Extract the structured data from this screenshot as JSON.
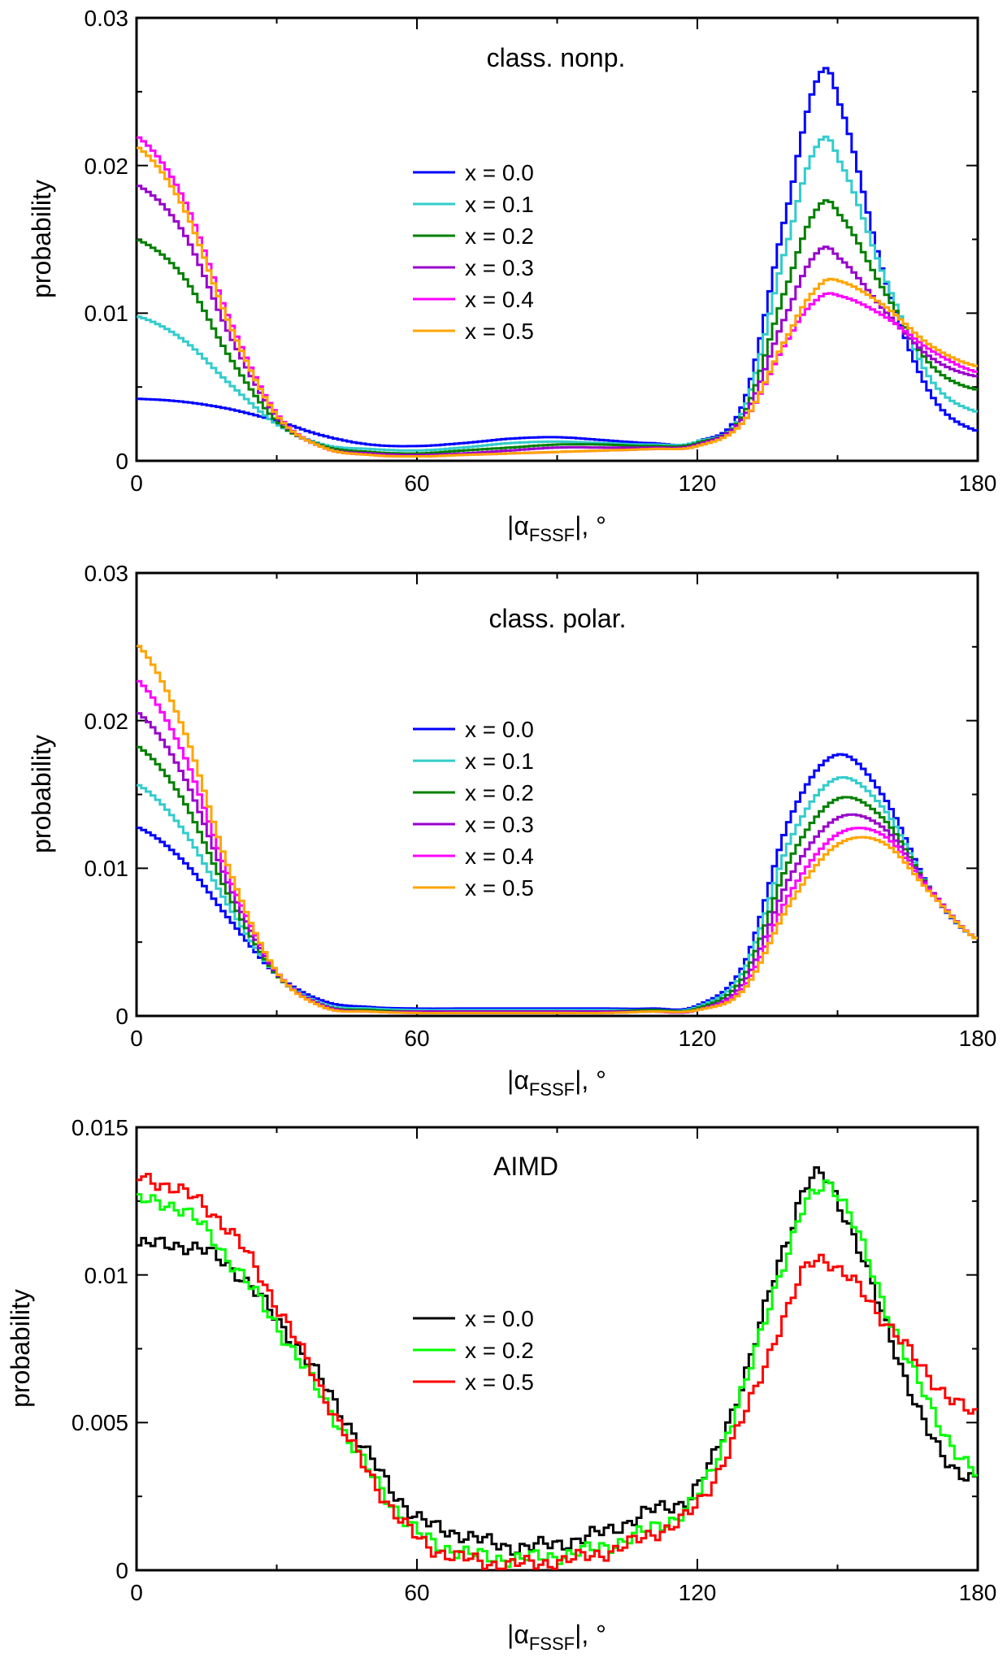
{
  "chart_data": [
    {
      "type": "line",
      "title": "class. nonp.",
      "xlabel": "|α_FSSF|, °",
      "xlabel_main": "|α",
      "xlabel_sub": "FSSF",
      "xlabel_tail": "|, °",
      "ylabel": "probability",
      "xlim": [
        0,
        180
      ],
      "ylim": [
        0,
        0.03
      ],
      "xticks": [
        "0",
        "60",
        "120",
        "180"
      ],
      "yticks": [
        "0",
        "0.01",
        "0.02",
        "0.03"
      ],
      "legend": "center-left",
      "x": [
        0,
        10,
        20,
        30,
        40,
        50,
        60,
        70,
        80,
        90,
        100,
        110,
        120,
        130,
        140,
        146,
        150,
        160,
        170,
        180
      ],
      "series": [
        {
          "name": "x = 0.0",
          "color": "#0000ff",
          "values": [
            0.0042,
            0.004,
            0.0035,
            0.0027,
            0.0017,
            0.0011,
            0.001,
            0.0012,
            0.0015,
            0.0016,
            0.0014,
            0.0012,
            0.0013,
            0.004,
            0.018,
            0.026,
            0.0245,
            0.0125,
            0.0045,
            0.002
          ]
        },
        {
          "name": "x = 0.1",
          "color": "#33cccc",
          "values": [
            0.0098,
            0.0082,
            0.0052,
            0.0025,
            0.0011,
            0.0008,
            0.0007,
            0.0009,
            0.0012,
            0.0013,
            0.0012,
            0.0011,
            0.0013,
            0.0035,
            0.0155,
            0.0215,
            0.0205,
            0.0125,
            0.0055,
            0.0033
          ]
        },
        {
          "name": "x = 0.2",
          "color": "#008000",
          "values": [
            0.015,
            0.0125,
            0.007,
            0.0027,
            0.001,
            0.0006,
            0.0005,
            0.0007,
            0.0009,
            0.0011,
            0.0011,
            0.001,
            0.0012,
            0.0032,
            0.0125,
            0.0172,
            0.0168,
            0.0115,
            0.0065,
            0.0048
          ]
        },
        {
          "name": "x = 0.3",
          "color": "#9900cc",
          "values": [
            0.0187,
            0.0155,
            0.0085,
            0.003,
            0.0009,
            0.0005,
            0.0004,
            0.0005,
            0.0007,
            0.0009,
            0.0009,
            0.0009,
            0.0011,
            0.003,
            0.0105,
            0.0142,
            0.0138,
            0.0102,
            0.007,
            0.0057
          ]
        },
        {
          "name": "x = 0.4",
          "color": "#ff00ff",
          "values": [
            0.022,
            0.0178,
            0.0095,
            0.0032,
            0.0009,
            0.0004,
            0.0003,
            0.0004,
            0.0005,
            0.0006,
            0.0007,
            0.0008,
            0.001,
            0.0027,
            0.0085,
            0.011,
            0.0112,
            0.0098,
            0.0075,
            0.006
          ]
        },
        {
          "name": "x = 0.5",
          "color": "#ffa500",
          "values": [
            0.0213,
            0.0172,
            0.0092,
            0.0031,
            0.0009,
            0.0004,
            0.0003,
            0.0004,
            0.0005,
            0.0006,
            0.0007,
            0.0008,
            0.001,
            0.0027,
            0.0088,
            0.0118,
            0.0122,
            0.0105,
            0.0078,
            0.0064
          ]
        }
      ]
    },
    {
      "type": "line",
      "title": "class. polar.",
      "xlabel": "|α_FSSF|, °",
      "xlabel_main": "|α",
      "xlabel_sub": "FSSF",
      "xlabel_tail": "|, °",
      "ylabel": "probability",
      "xlim": [
        0,
        180
      ],
      "ylim": [
        0,
        0.03
      ],
      "xticks": [
        "0",
        "60",
        "120",
        "180"
      ],
      "yticks": [
        "0",
        "0.01",
        "0.02",
        "0.03"
      ],
      "legend": "center",
      "x": [
        0,
        10,
        20,
        30,
        40,
        50,
        60,
        70,
        80,
        90,
        100,
        110,
        120,
        130,
        140,
        150,
        160,
        170,
        180
      ],
      "series": [
        {
          "name": "x = 0.0",
          "color": "#0000ff",
          "values": [
            0.0128,
            0.0105,
            0.0065,
            0.0028,
            0.001,
            0.0006,
            0.0005,
            0.0005,
            0.0005,
            0.0005,
            0.0005,
            0.0005,
            0.0007,
            0.0035,
            0.0135,
            0.0177,
            0.0148,
            0.0085,
            0.0052
          ]
        },
        {
          "name": "x = 0.1",
          "color": "#33cccc",
          "values": [
            0.0157,
            0.0126,
            0.0073,
            0.0028,
            0.0008,
            0.0005,
            0.0004,
            0.0004,
            0.0004,
            0.0004,
            0.0004,
            0.0004,
            0.0006,
            0.0031,
            0.012,
            0.0161,
            0.014,
            0.0085,
            0.0052
          ]
        },
        {
          "name": "x = 0.2",
          "color": "#008000",
          "values": [
            0.0183,
            0.0146,
            0.008,
            0.0028,
            0.0007,
            0.0004,
            0.0003,
            0.0003,
            0.0003,
            0.0003,
            0.0003,
            0.0004,
            0.0005,
            0.0027,
            0.0107,
            0.0147,
            0.0133,
            0.0085,
            0.0052
          ]
        },
        {
          "name": "x = 0.3",
          "color": "#9900cc",
          "values": [
            0.0206,
            0.0163,
            0.0087,
            0.0029,
            0.0007,
            0.0003,
            0.0003,
            0.0003,
            0.0003,
            0.0003,
            0.0003,
            0.0003,
            0.0004,
            0.0023,
            0.0095,
            0.0134,
            0.0127,
            0.0085,
            0.0052
          ]
        },
        {
          "name": "x = 0.4",
          "color": "#ff00ff",
          "values": [
            0.0228,
            0.0178,
            0.0093,
            0.003,
            0.0006,
            0.0003,
            0.0002,
            0.0002,
            0.0002,
            0.0002,
            0.0002,
            0.0003,
            0.0004,
            0.002,
            0.0084,
            0.0123,
            0.0122,
            0.0084,
            0.0052
          ]
        },
        {
          "name": "x = 0.5",
          "color": "#ffa500",
          "values": [
            0.0252,
            0.0195,
            0.0098,
            0.003,
            0.0006,
            0.0003,
            0.0002,
            0.0002,
            0.0002,
            0.0002,
            0.0002,
            0.0003,
            0.0004,
            0.0018,
            0.0077,
            0.0116,
            0.0117,
            0.0083,
            0.0052
          ]
        }
      ]
    },
    {
      "type": "line",
      "title": "AIMD",
      "xlabel": "|α_FSSF|, °",
      "xlabel_main": "|α",
      "xlabel_sub": "FSSF",
      "xlabel_tail": "|, °",
      "ylabel": "probability",
      "xlim": [
        0,
        180
      ],
      "ylim": [
        0,
        0.015
      ],
      "xticks": [
        "0",
        "60",
        "120",
        "180"
      ],
      "yticks": [
        "0",
        "0.005",
        "0.01",
        "0.015"
      ],
      "legend": "center",
      "x": [
        0,
        10,
        20,
        30,
        40,
        50,
        60,
        70,
        80,
        90,
        100,
        110,
        120,
        130,
        140,
        145,
        150,
        160,
        170,
        180
      ],
      "series": [
        {
          "name": "x = 0.0",
          "color": "#000000",
          "values": [
            0.011,
            0.011,
            0.0103,
            0.0085,
            0.0063,
            0.0038,
            0.0018,
            0.0012,
            0.0008,
            0.0009,
            0.0013,
            0.002,
            0.0028,
            0.0065,
            0.0115,
            0.0133,
            0.0125,
            0.0085,
            0.0045,
            0.003
          ]
        },
        {
          "name": "x = 0.2",
          "color": "#00ff00",
          "values": [
            0.0125,
            0.0122,
            0.0105,
            0.0083,
            0.0058,
            0.0033,
            0.0013,
            0.0006,
            0.0004,
            0.0005,
            0.0008,
            0.0014,
            0.0025,
            0.0062,
            0.011,
            0.0127,
            0.0128,
            0.009,
            0.0055,
            0.0032
          ]
        },
        {
          "name": "x = 0.5",
          "color": "#ff0000",
          "values": [
            0.0133,
            0.0128,
            0.0115,
            0.009,
            0.006,
            0.0032,
            0.0011,
            0.0004,
            0.0002,
            0.0003,
            0.0006,
            0.0012,
            0.0022,
            0.0052,
            0.009,
            0.0105,
            0.0102,
            0.0085,
            0.0065,
            0.0052
          ]
        }
      ]
    }
  ]
}
